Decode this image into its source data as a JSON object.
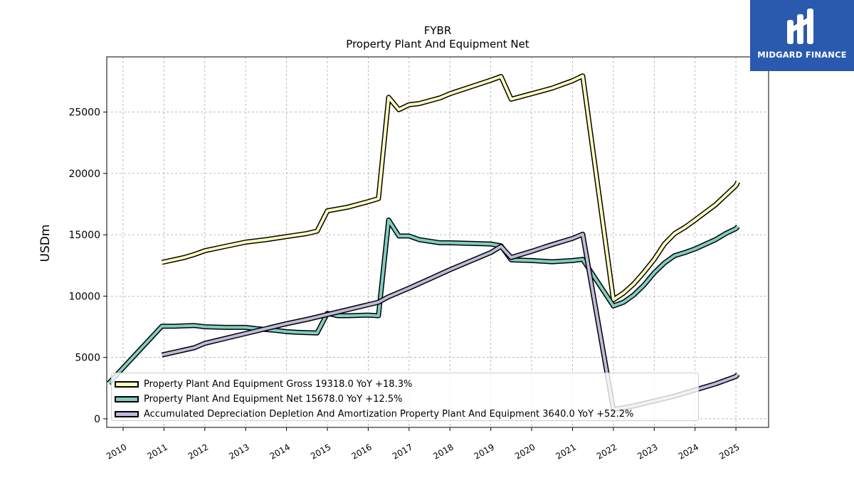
{
  "logo": {
    "text": "MIDGARD FINANCE"
  },
  "chart_data": {
    "type": "line",
    "title": "FYBR",
    "subtitle": "Property Plant And Equipment Net",
    "xlabel": "",
    "ylabel": "USDm",
    "xlim": [
      2009.6,
      2025.8
    ],
    "ylim": [
      -700,
      29500
    ],
    "x_ticks": [
      "2010",
      "2011",
      "2012",
      "2013",
      "2014",
      "2015",
      "2016",
      "2017",
      "2018",
      "2019",
      "2020",
      "2021",
      "2022",
      "2023",
      "2024",
      "2025"
    ],
    "y_ticks": [
      0,
      5000,
      10000,
      15000,
      20000,
      25000
    ],
    "grid": true,
    "legend_position": "lower-left",
    "series": [
      {
        "name": "Property Plant And Equipment Gross",
        "legend": "Property Plant And Equipment Gross  19318.0 YoY +18.3%",
        "color": "#ffffbf",
        "points": [
          [
            2010.95,
            12750
          ],
          [
            2011.5,
            13150
          ],
          [
            2011.75,
            13400
          ],
          [
            2012.0,
            13700
          ],
          [
            2012.5,
            14050
          ],
          [
            2013.0,
            14400
          ],
          [
            2013.5,
            14600
          ],
          [
            2014.0,
            14850
          ],
          [
            2014.5,
            15100
          ],
          [
            2014.75,
            15300
          ],
          [
            2015.0,
            16950
          ],
          [
            2015.5,
            17250
          ],
          [
            2016.0,
            17700
          ],
          [
            2016.25,
            17950
          ],
          [
            2016.5,
            26200
          ],
          [
            2016.75,
            25200
          ],
          [
            2017.0,
            25600
          ],
          [
            2017.25,
            25700
          ],
          [
            2017.75,
            26150
          ],
          [
            2018.0,
            26500
          ],
          [
            2018.5,
            27050
          ],
          [
            2019.0,
            27600
          ],
          [
            2019.25,
            27900
          ],
          [
            2019.5,
            26050
          ],
          [
            2020.0,
            26500
          ],
          [
            2020.5,
            26950
          ],
          [
            2021.0,
            27550
          ],
          [
            2021.25,
            27950
          ],
          [
            2022.0,
            9700
          ],
          [
            2022.25,
            10250
          ],
          [
            2022.5,
            11000
          ],
          [
            2022.75,
            11950
          ],
          [
            2023.0,
            13000
          ],
          [
            2023.25,
            14250
          ],
          [
            2023.5,
            15100
          ],
          [
            2023.75,
            15600
          ],
          [
            2024.0,
            16200
          ],
          [
            2024.5,
            17450
          ],
          [
            2025.0,
            19000
          ],
          [
            2025.05,
            19318
          ]
        ]
      },
      {
        "name": "Property Plant And Equipment Net",
        "legend": "Property Plant And Equipment Net  15678.0 YoY +12.5%",
        "color": "#80cdc1",
        "points": [
          [
            2009.65,
            2900
          ],
          [
            2010.95,
            7550
          ],
          [
            2011.25,
            7550
          ],
          [
            2011.75,
            7600
          ],
          [
            2012.0,
            7500
          ],
          [
            2012.5,
            7450
          ],
          [
            2013.0,
            7450
          ],
          [
            2013.25,
            7350
          ],
          [
            2013.75,
            7200
          ],
          [
            2014.0,
            7100
          ],
          [
            2014.25,
            7050
          ],
          [
            2014.75,
            7000
          ],
          [
            2015.0,
            8600
          ],
          [
            2015.25,
            8400
          ],
          [
            2015.5,
            8400
          ],
          [
            2016.0,
            8450
          ],
          [
            2016.25,
            8400
          ],
          [
            2016.5,
            16200
          ],
          [
            2016.75,
            14900
          ],
          [
            2017.0,
            14900
          ],
          [
            2017.25,
            14600
          ],
          [
            2017.75,
            14350
          ],
          [
            2018.0,
            14350
          ],
          [
            2018.5,
            14300
          ],
          [
            2019.0,
            14250
          ],
          [
            2019.25,
            14100
          ],
          [
            2019.5,
            12950
          ],
          [
            2020.0,
            12900
          ],
          [
            2020.5,
            12800
          ],
          [
            2021.0,
            12900
          ],
          [
            2021.25,
            13000
          ],
          [
            2022.0,
            9200
          ],
          [
            2022.25,
            9500
          ],
          [
            2022.5,
            10100
          ],
          [
            2022.75,
            10900
          ],
          [
            2023.0,
            11900
          ],
          [
            2023.25,
            12700
          ],
          [
            2023.5,
            13300
          ],
          [
            2023.75,
            13550
          ],
          [
            2024.0,
            13850
          ],
          [
            2024.5,
            14600
          ],
          [
            2024.75,
            15100
          ],
          [
            2025.0,
            15500
          ],
          [
            2025.05,
            15678
          ]
        ]
      },
      {
        "name": "Accumulated Depreciation Depletion And Amortization Property Plant And Equipment",
        "legend": "Accumulated Depreciation Depletion And Amortization Property Plant And Equipment  3640.0 YoY +52.2%",
        "color": "#bebada",
        "points": [
          [
            2010.95,
            5200
          ],
          [
            2011.75,
            5800
          ],
          [
            2012.0,
            6150
          ],
          [
            2012.5,
            6550
          ],
          [
            2013.0,
            6950
          ],
          [
            2013.5,
            7350
          ],
          [
            2014.0,
            7750
          ],
          [
            2014.5,
            8100
          ],
          [
            2015.0,
            8500
          ],
          [
            2015.5,
            8900
          ],
          [
            2016.0,
            9300
          ],
          [
            2016.25,
            9500
          ],
          [
            2016.5,
            9950
          ],
          [
            2017.0,
            10650
          ],
          [
            2017.5,
            11400
          ],
          [
            2018.0,
            12150
          ],
          [
            2018.5,
            12850
          ],
          [
            2019.0,
            13550
          ],
          [
            2019.25,
            14050
          ],
          [
            2019.5,
            13150
          ],
          [
            2020.0,
            13650
          ],
          [
            2020.5,
            14200
          ],
          [
            2021.0,
            14700
          ],
          [
            2021.25,
            15050
          ],
          [
            2022.0,
            750
          ],
          [
            2022.5,
            1050
          ],
          [
            2023.0,
            1450
          ],
          [
            2023.5,
            1850
          ],
          [
            2024.0,
            2350
          ],
          [
            2024.5,
            2850
          ],
          [
            2025.0,
            3450
          ],
          [
            2025.05,
            3640
          ]
        ]
      }
    ]
  }
}
